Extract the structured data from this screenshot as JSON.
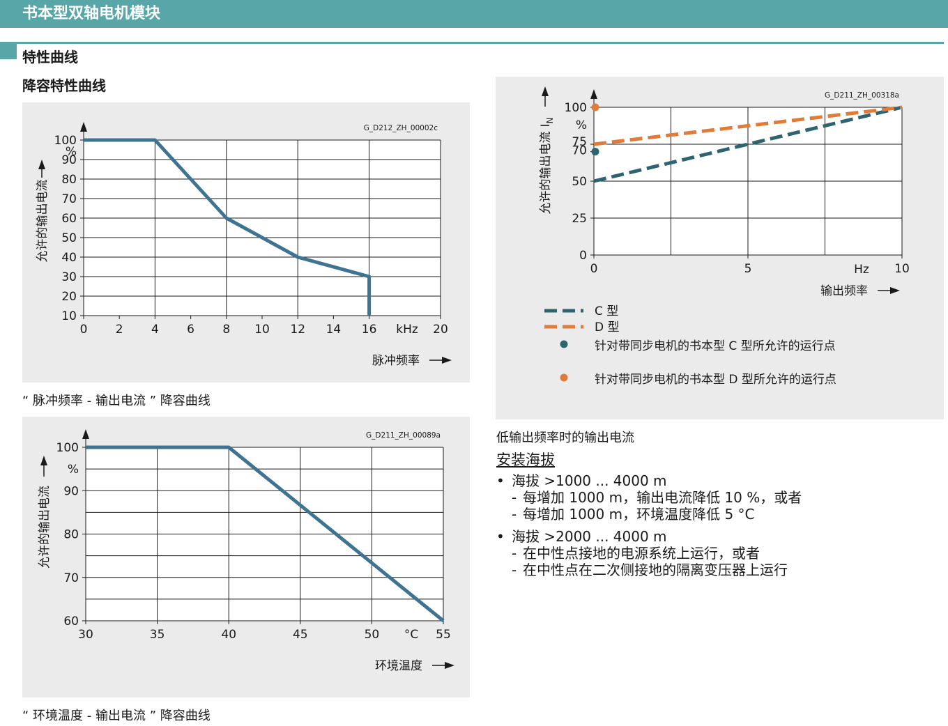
{
  "header": {
    "title": "书本型双轴电机模块"
  },
  "section": {
    "title": "特性曲线",
    "subtitle": "降容特性曲线"
  },
  "chart_data": [
    {
      "id": "pulse",
      "type": "line",
      "code": "G_D212_ZH_00002c",
      "xlabel": "脉冲频率",
      "ylabel": "允许的输出电流",
      "x_unit": "kHz",
      "y_unit": "%",
      "xlim": [
        0,
        20
      ],
      "ylim": [
        10,
        100
      ],
      "x_ticks": [
        0,
        2,
        4,
        6,
        8,
        10,
        12,
        14,
        16,
        20
      ],
      "x_grid": [
        0,
        4,
        8,
        12,
        16,
        20
      ],
      "y_ticks": [
        10,
        20,
        30,
        40,
        50,
        60,
        70,
        80,
        90,
        100
      ],
      "y_grid": [
        10,
        20,
        30,
        40,
        50,
        60,
        70,
        80,
        90,
        100
      ],
      "series": [
        {
          "x": [
            0,
            4,
            8,
            12,
            16,
            16
          ],
          "y": [
            100,
            100,
            60,
            40,
            30,
            10
          ],
          "color": "#3e7391"
        }
      ],
      "caption": "“ 脉冲频率 - 输出电流 ” 降容曲线"
    },
    {
      "id": "temp",
      "type": "line",
      "code": "G_D211_ZH_00089a",
      "xlabel": "环境温度",
      "ylabel": "允许的输出电流",
      "x_unit": "°C",
      "y_unit": "%",
      "xlim": [
        30,
        55
      ],
      "ylim": [
        60,
        100
      ],
      "x_ticks": [
        30,
        35,
        40,
        45,
        50,
        55
      ],
      "x_grid": [
        30,
        35,
        40,
        45,
        50,
        55
      ],
      "y_ticks": [
        60,
        70,
        80,
        90,
        100
      ],
      "y_grid": [
        60,
        65,
        70,
        75,
        80,
        85,
        90,
        95,
        100
      ],
      "series": [
        {
          "x": [
            30,
            40,
            55
          ],
          "y": [
            100,
            100,
            60
          ],
          "color": "#3e7391"
        }
      ],
      "caption": "“ 环境温度 - 输出电流 ” 降容曲线"
    },
    {
      "id": "lowfreq",
      "type": "line",
      "code": "G_D211_ZH_00318a",
      "xlabel": "输出频率",
      "ylabel": "允许的输出电流",
      "ylabel_symbol": "I",
      "ylabel_sub": "N",
      "x_unit": "Hz",
      "y_unit": "%",
      "xlim": [
        0,
        10
      ],
      "ylim": [
        0,
        100
      ],
      "x_ticks": [
        0,
        5,
        10
      ],
      "x_grid": [
        0,
        2.5,
        5,
        7.5,
        10
      ],
      "y_ticks": [
        0,
        25,
        50,
        70,
        75,
        100
      ],
      "y_grid": [
        0,
        25,
        50,
        75,
        100
      ],
      "series": [
        {
          "name": "C 型",
          "x": [
            0,
            10
          ],
          "y": [
            50,
            100
          ],
          "color": "#2e6470",
          "dash": true
        },
        {
          "name": "D 型",
          "x": [
            0,
            10
          ],
          "y": [
            75,
            100
          ],
          "color": "#e07b39",
          "dash": true
        }
      ],
      "points": [
        {
          "name": "针对带同步电机的书本型 C 型所允许的运行点",
          "x": 0,
          "y": 70,
          "color": "#2e6470"
        },
        {
          "name": "针对带同步电机的书本型 D 型所允许的运行点",
          "x": 0,
          "y": 100,
          "color": "#e07b39"
        }
      ],
      "caption": "低输出频率时的输出电流"
    }
  ],
  "notes": {
    "heading": "安装海拔",
    "items": [
      {
        "bullet": "•",
        "text": "海拔 >1000 ... 4000 m",
        "subs": [
          "每增加 1000 m，输出电流降低 10 %，或者",
          "每增加 1000 m，环境温度降低 5 °C"
        ]
      },
      {
        "bullet": "•",
        "text": "海拔 >2000 ... 4000 m",
        "subs": [
          "在中性点接地的电源系统上运行，或者",
          "在中性点在二次侧接地的隔离变压器上运行"
        ]
      }
    ],
    "dash": "-"
  }
}
